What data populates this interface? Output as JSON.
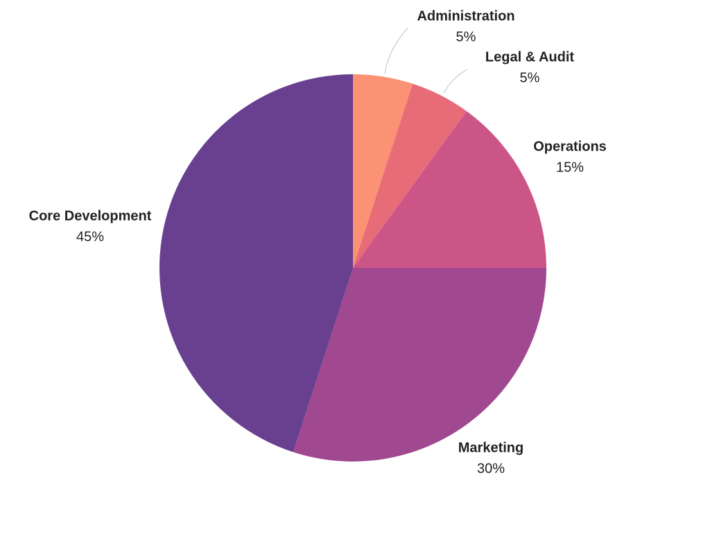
{
  "chart_data": {
    "type": "pie",
    "title": "",
    "start_angle_deg": 0,
    "direction": "clockwise",
    "slices": [
      {
        "label": "Administration",
        "value": 5,
        "value_label": "5%",
        "color": "#fb9274"
      },
      {
        "label": "Legal & Audit",
        "value": 5,
        "value_label": "5%",
        "color": "#e86b78"
      },
      {
        "label": "Operations",
        "value": 15,
        "value_label": "15%",
        "color": "#cc5588"
      },
      {
        "label": "Marketing",
        "value": 30,
        "value_label": "30%",
        "color": "#a04890"
      },
      {
        "label": "Core Development",
        "value": 45,
        "value_label": "45%",
        "color": "#693f8f"
      }
    ]
  }
}
